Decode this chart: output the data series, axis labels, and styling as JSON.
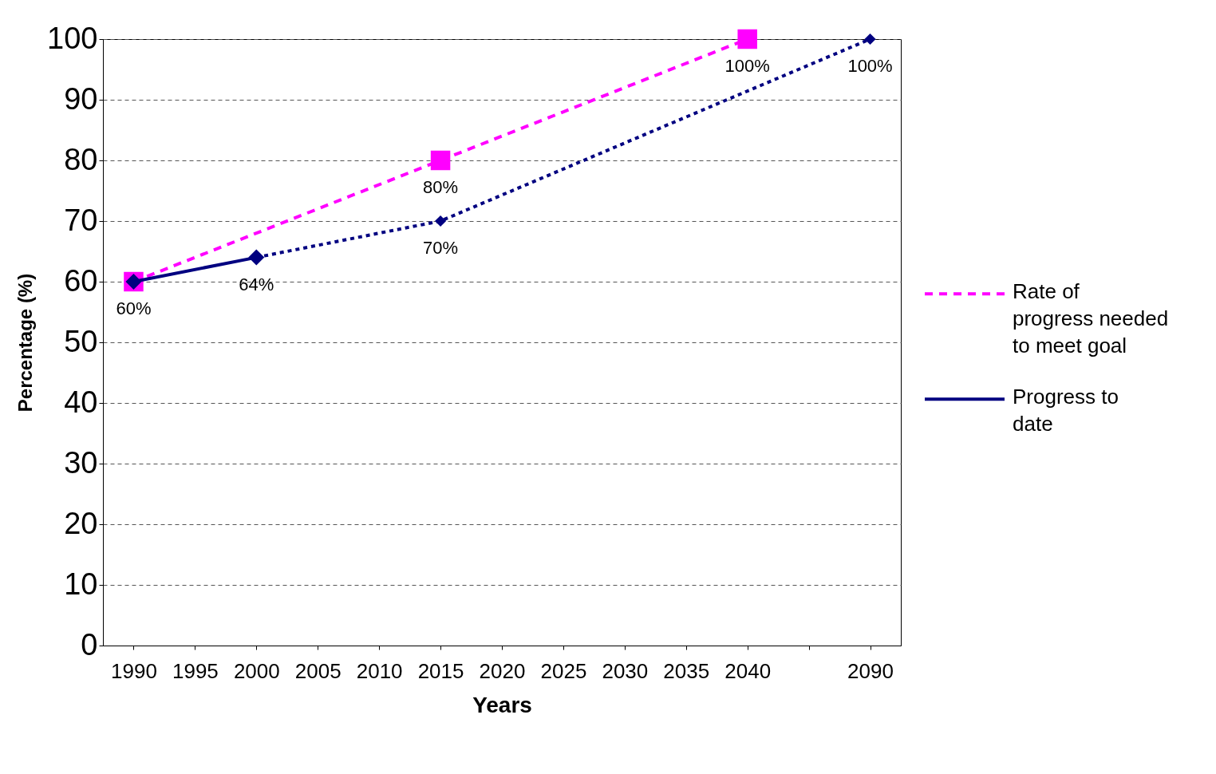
{
  "chart_data": {
    "type": "line",
    "xlabel": "Years",
    "ylabel": "Percentage (%)",
    "categories": [
      "1990",
      "1995",
      "2000",
      "2005",
      "2010",
      "2015",
      "2020",
      "2025",
      "2030",
      "2035",
      "2040",
      null,
      "2090"
    ],
    "series": [
      {
        "name": "Rate of progress needed to meet goal",
        "color": "#ff00ff",
        "line_style": "dashed",
        "marker": "square",
        "values": [
          60,
          null,
          null,
          null,
          null,
          80,
          null,
          null,
          null,
          null,
          100,
          null,
          null
        ],
        "value_labels": [
          null,
          null,
          null,
          null,
          null,
          "80%",
          null,
          null,
          null,
          null,
          "100%",
          null,
          null
        ]
      },
      {
        "name": "Progress to date",
        "color": "#000080",
        "line_style": "solid",
        "marker": "diamond",
        "values": [
          60,
          null,
          64,
          null,
          null,
          null,
          null,
          null,
          null,
          null,
          null,
          null,
          null
        ],
        "value_labels": [
          "60%",
          null,
          "64%",
          null,
          null,
          null,
          null,
          null,
          null,
          null,
          null,
          null,
          null
        ]
      },
      {
        "color": "#000080",
        "line_style": "dotted",
        "marker": "diamond",
        "values": [
          null,
          null,
          64,
          null,
          null,
          70,
          null,
          null,
          null,
          null,
          null,
          null,
          100
        ],
        "value_labels": [
          null,
          null,
          null,
          null,
          null,
          "70%",
          null,
          null,
          null,
          null,
          null,
          null,
          "100%"
        ]
      }
    ],
    "ylim": [
      0,
      100
    ],
    "yticks": [
      0,
      10,
      20,
      30,
      40,
      50,
      60,
      70,
      80,
      90,
      100
    ],
    "grid": "y",
    "legend": "right"
  }
}
